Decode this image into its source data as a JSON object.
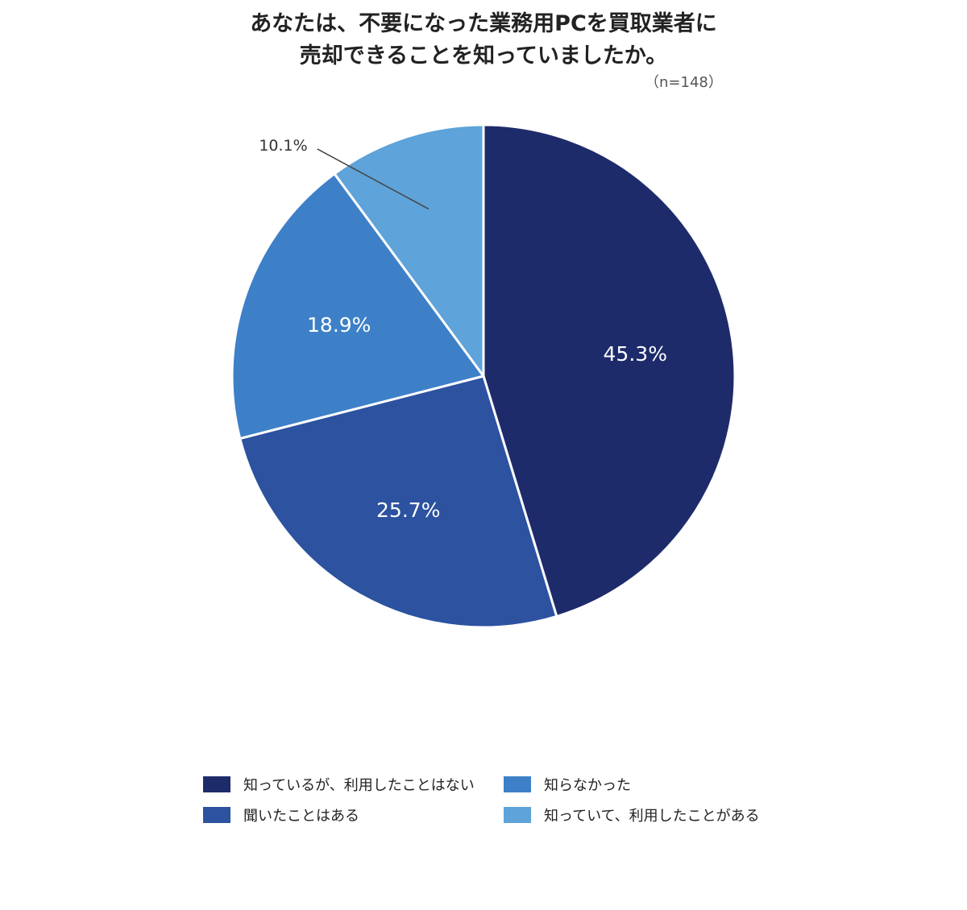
{
  "chart_data": {
    "type": "pie",
    "title": [
      "あなたは、不要になった業務用PCを買取業者に",
      "売却できることを知っていましたか。"
    ],
    "sample_size": "（n=148）",
    "slices": [
      {
        "label": "知っているが、利用したことはない",
        "value": 45.3,
        "display": "45.3%",
        "color": "#1e2b6b"
      },
      {
        "label": "聞いたことはある",
        "value": 25.7,
        "display": "25.7%",
        "color": "#2c52a0"
      },
      {
        "label": "知らなかった",
        "value": 18.9,
        "display": "18.9%",
        "color": "#3d80c8"
      },
      {
        "label": "知っていて、利用したことがある",
        "value": 10.1,
        "display": "10.1%",
        "color": "#5ea3d9"
      }
    ],
    "legend_position": "bottom"
  }
}
